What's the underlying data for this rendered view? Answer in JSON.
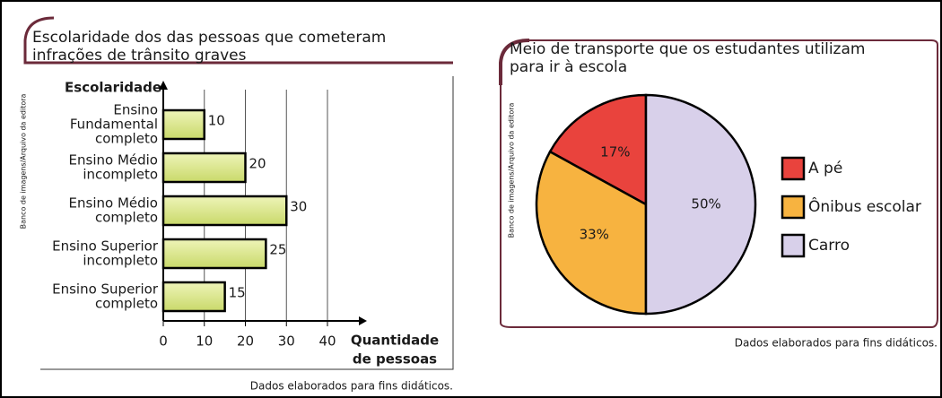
{
  "chart_data": [
    {
      "type": "bar",
      "orientation": "horizontal",
      "title": [
        "Escolaridade dos das pessoas que cometeram",
        "infrações de trânsito graves"
      ],
      "y_label": "Escolaridade",
      "x_label": [
        "Quantidade",
        "de pessoas"
      ],
      "categories": [
        [
          "Ensino",
          "Fundamental",
          "completo"
        ],
        [
          "Ensino Médio",
          "incompleto"
        ],
        [
          "Ensino Médio",
          "completo"
        ],
        [
          "Ensino Superior",
          "incompleto"
        ],
        [
          "Ensino Superior",
          "completo"
        ]
      ],
      "values": [
        10,
        20,
        30,
        25,
        15
      ],
      "color": "#d8e588",
      "xlim": [
        0,
        40
      ],
      "xticks": [
        0,
        10,
        20,
        30,
        40
      ],
      "grid": true,
      "source": "Banco de imagens/Arquivo da editora",
      "note": "Dados elaborados para fins didáticos."
    },
    {
      "type": "pie",
      "title": [
        "Meio de transporte que os estudantes utilizam",
        "para ir à escola"
      ],
      "series": [
        {
          "name": "A pé",
          "color": "#e9433d",
          "values": [
            17
          ],
          "value_labels": [
            "17%"
          ]
        },
        {
          "name": "Ônibus escolar",
          "color": "#f7b340",
          "values": [
            33
          ],
          "value_labels": [
            "33%"
          ]
        },
        {
          "name": "Carro",
          "color": "#d8d0ea",
          "values": [
            50
          ],
          "value_labels": [
            "50%"
          ]
        }
      ],
      "source": "Banco de imagens/Arquivo da editora",
      "note": "Dados elaborados para fins didáticos."
    }
  ]
}
